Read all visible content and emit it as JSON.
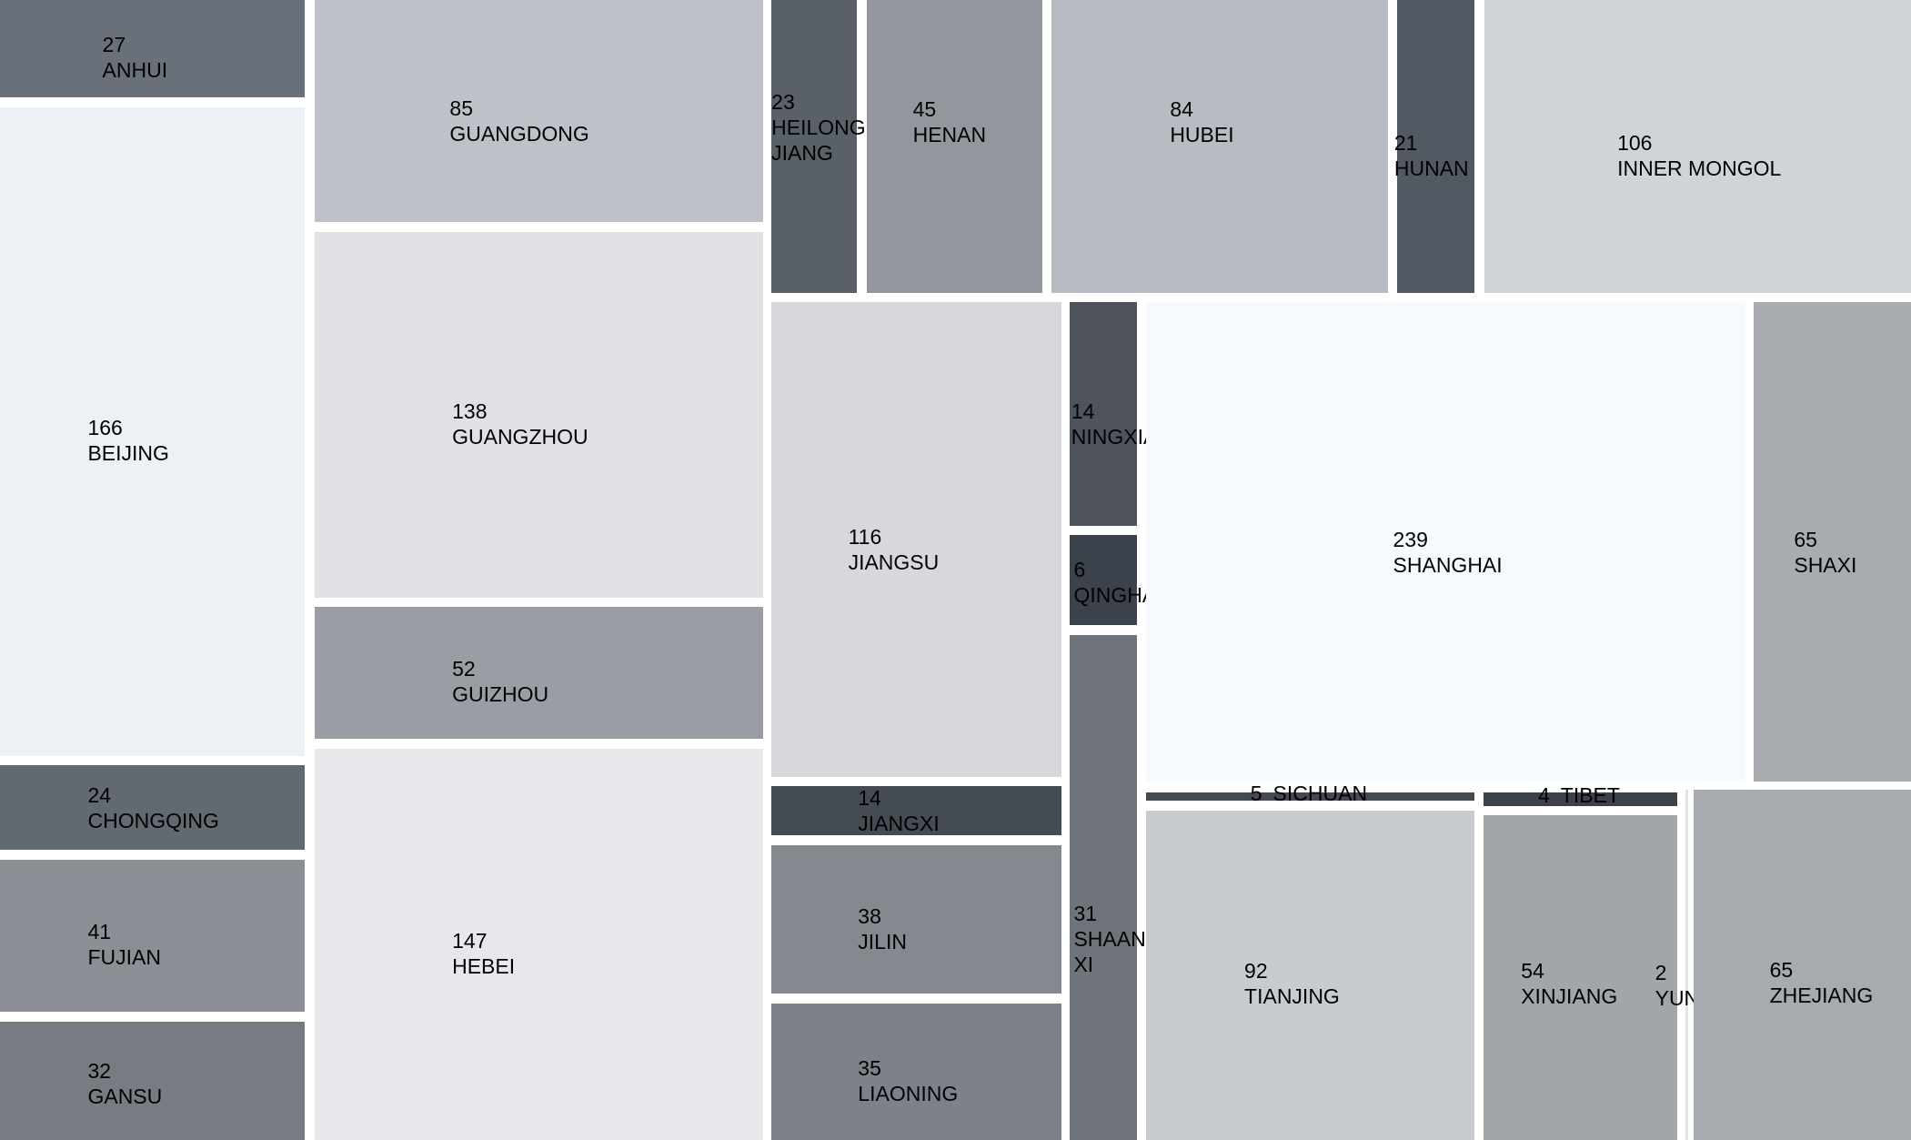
{
  "chart_data": {
    "type": "treemap",
    "title": "",
    "items": [
      {
        "name": "ANHUI",
        "value": 27,
        "color": "#6a7079"
      },
      {
        "name": "BEIJING",
        "value": 166,
        "color": "#edf0f4"
      },
      {
        "name": "CHONGQING",
        "value": 24,
        "color": "#636971"
      },
      {
        "name": "FUJIAN",
        "value": 41,
        "color": "#8b8f95"
      },
      {
        "name": "GANSU",
        "value": 32,
        "color": "#777b82"
      },
      {
        "name": "GUANGDONG",
        "value": 85,
        "color": "#bec2c8"
      },
      {
        "name": "GUANGZHOU",
        "value": 138,
        "color": "#dfe1e5"
      },
      {
        "name": "GUIZHOU",
        "value": 52,
        "color": "#9a9da3"
      },
      {
        "name": "HEBEI",
        "value": 147,
        "color": "#e6e8ec"
      },
      {
        "name": "HEILONG JIANG",
        "label_lines": [
          "HEILONG",
          "JIANG"
        ],
        "value": 23,
        "color": "#5a6068"
      },
      {
        "name": "HENAN",
        "value": 45,
        "color": "#93979d"
      },
      {
        "name": "HUBEI",
        "value": 84,
        "color": "#b7bbc2"
      },
      {
        "name": "HUNAN",
        "value": 21,
        "color": "#535962"
      },
      {
        "name": "INNER MONGOL",
        "value": 106,
        "color": "#d0d3d8"
      },
      {
        "name": "JIANGSU",
        "value": 116,
        "color": "#d6d8dc"
      },
      {
        "name": "JIANGXI",
        "value": 14,
        "color": "#454b53"
      },
      {
        "name": "JILIN",
        "value": 38,
        "color": "#85898f"
      },
      {
        "name": "LIAONING",
        "value": 35,
        "color": "#7d8189"
      },
      {
        "name": "NINGXIA",
        "value": 14,
        "color": "#4e535c"
      },
      {
        "name": "QINGHAI",
        "value": 6,
        "color": "#3c424b"
      },
      {
        "name": "SHAANXI",
        "label_lines": [
          "SHAAN",
          "XI"
        ],
        "value": 31,
        "color": "#6f747b"
      },
      {
        "name": "SHANGHAI",
        "value": 239,
        "color": "#f6f9fe"
      },
      {
        "name": "SHAXI",
        "value": 65,
        "color": "#a8abb0"
      },
      {
        "name": "SICHUAN",
        "value": 5,
        "color": "#454a52"
      },
      {
        "name": "TIBET",
        "value": 4,
        "color": "#3d424a"
      },
      {
        "name": "TIANJING",
        "value": 92,
        "color": "#c8cbcf"
      },
      {
        "name": "XINJIANG",
        "value": 54,
        "color": "#a2a5aa"
      },
      {
        "name": "YUNNAN",
        "value": 2,
        "color": "#e2e4e8"
      },
      {
        "name": "ZHEJIANG",
        "value": 65,
        "color": "#a7aaaf"
      }
    ]
  }
}
